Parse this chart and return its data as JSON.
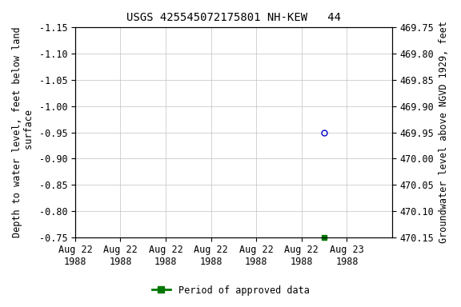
{
  "title": "USGS 425545072175801 NH-KEW   44",
  "ylabel_left": "Depth to water level, feet below land\n surface",
  "ylabel_right": "Groundwater level above NGVD 1929, feet",
  "ylim_left": [
    -1.15,
    -0.75
  ],
  "ylim_right": [
    469.75,
    470.15
  ],
  "yticks_left": [
    -1.15,
    -1.1,
    -1.05,
    -1.0,
    -0.95,
    -0.9,
    -0.85,
    -0.8,
    -0.75
  ],
  "ytick_labels_left": [
    "-1.15",
    "-1.10",
    "-1.05",
    "-1.00",
    "-0.95",
    "-0.90",
    "-0.85",
    "-0.80",
    "-0.75"
  ],
  "yticks_right": [
    469.75,
    469.8,
    469.85,
    469.9,
    469.95,
    470.0,
    470.05,
    470.1,
    470.15
  ],
  "ytick_labels_right": [
    "469.75",
    "469.80",
    "469.85",
    "469.90",
    "469.95",
    "470.00",
    "470.05",
    "470.10",
    "470.15"
  ],
  "xlim": [
    0,
    7
  ],
  "xtick_positions": [
    0,
    1,
    2,
    3,
    4,
    5,
    6
  ],
  "xtick_labels": [
    "Aug 22\n1988",
    "Aug 22\n1988",
    "Aug 22\n1988",
    "Aug 22\n1988",
    "Aug 22\n1988",
    "Aug 22\n1988",
    "Aug 23\n1988"
  ],
  "data_point_x": 5.5,
  "data_point_y": -0.95,
  "data_point_color": "none",
  "data_point_edge_color": "#0000cc",
  "data_point_marker": "o",
  "green_point_x": 5.5,
  "green_point_y": -0.75,
  "green_point_color": "#007700",
  "green_point_marker": "s",
  "legend_label": "Period of approved data",
  "legend_color": "#007700",
  "background_color": "#ffffff",
  "grid_color": "#c0c0c0",
  "title_fontsize": 10,
  "axis_label_fontsize": 8.5,
  "tick_fontsize": 8.5,
  "font_family": "monospace"
}
